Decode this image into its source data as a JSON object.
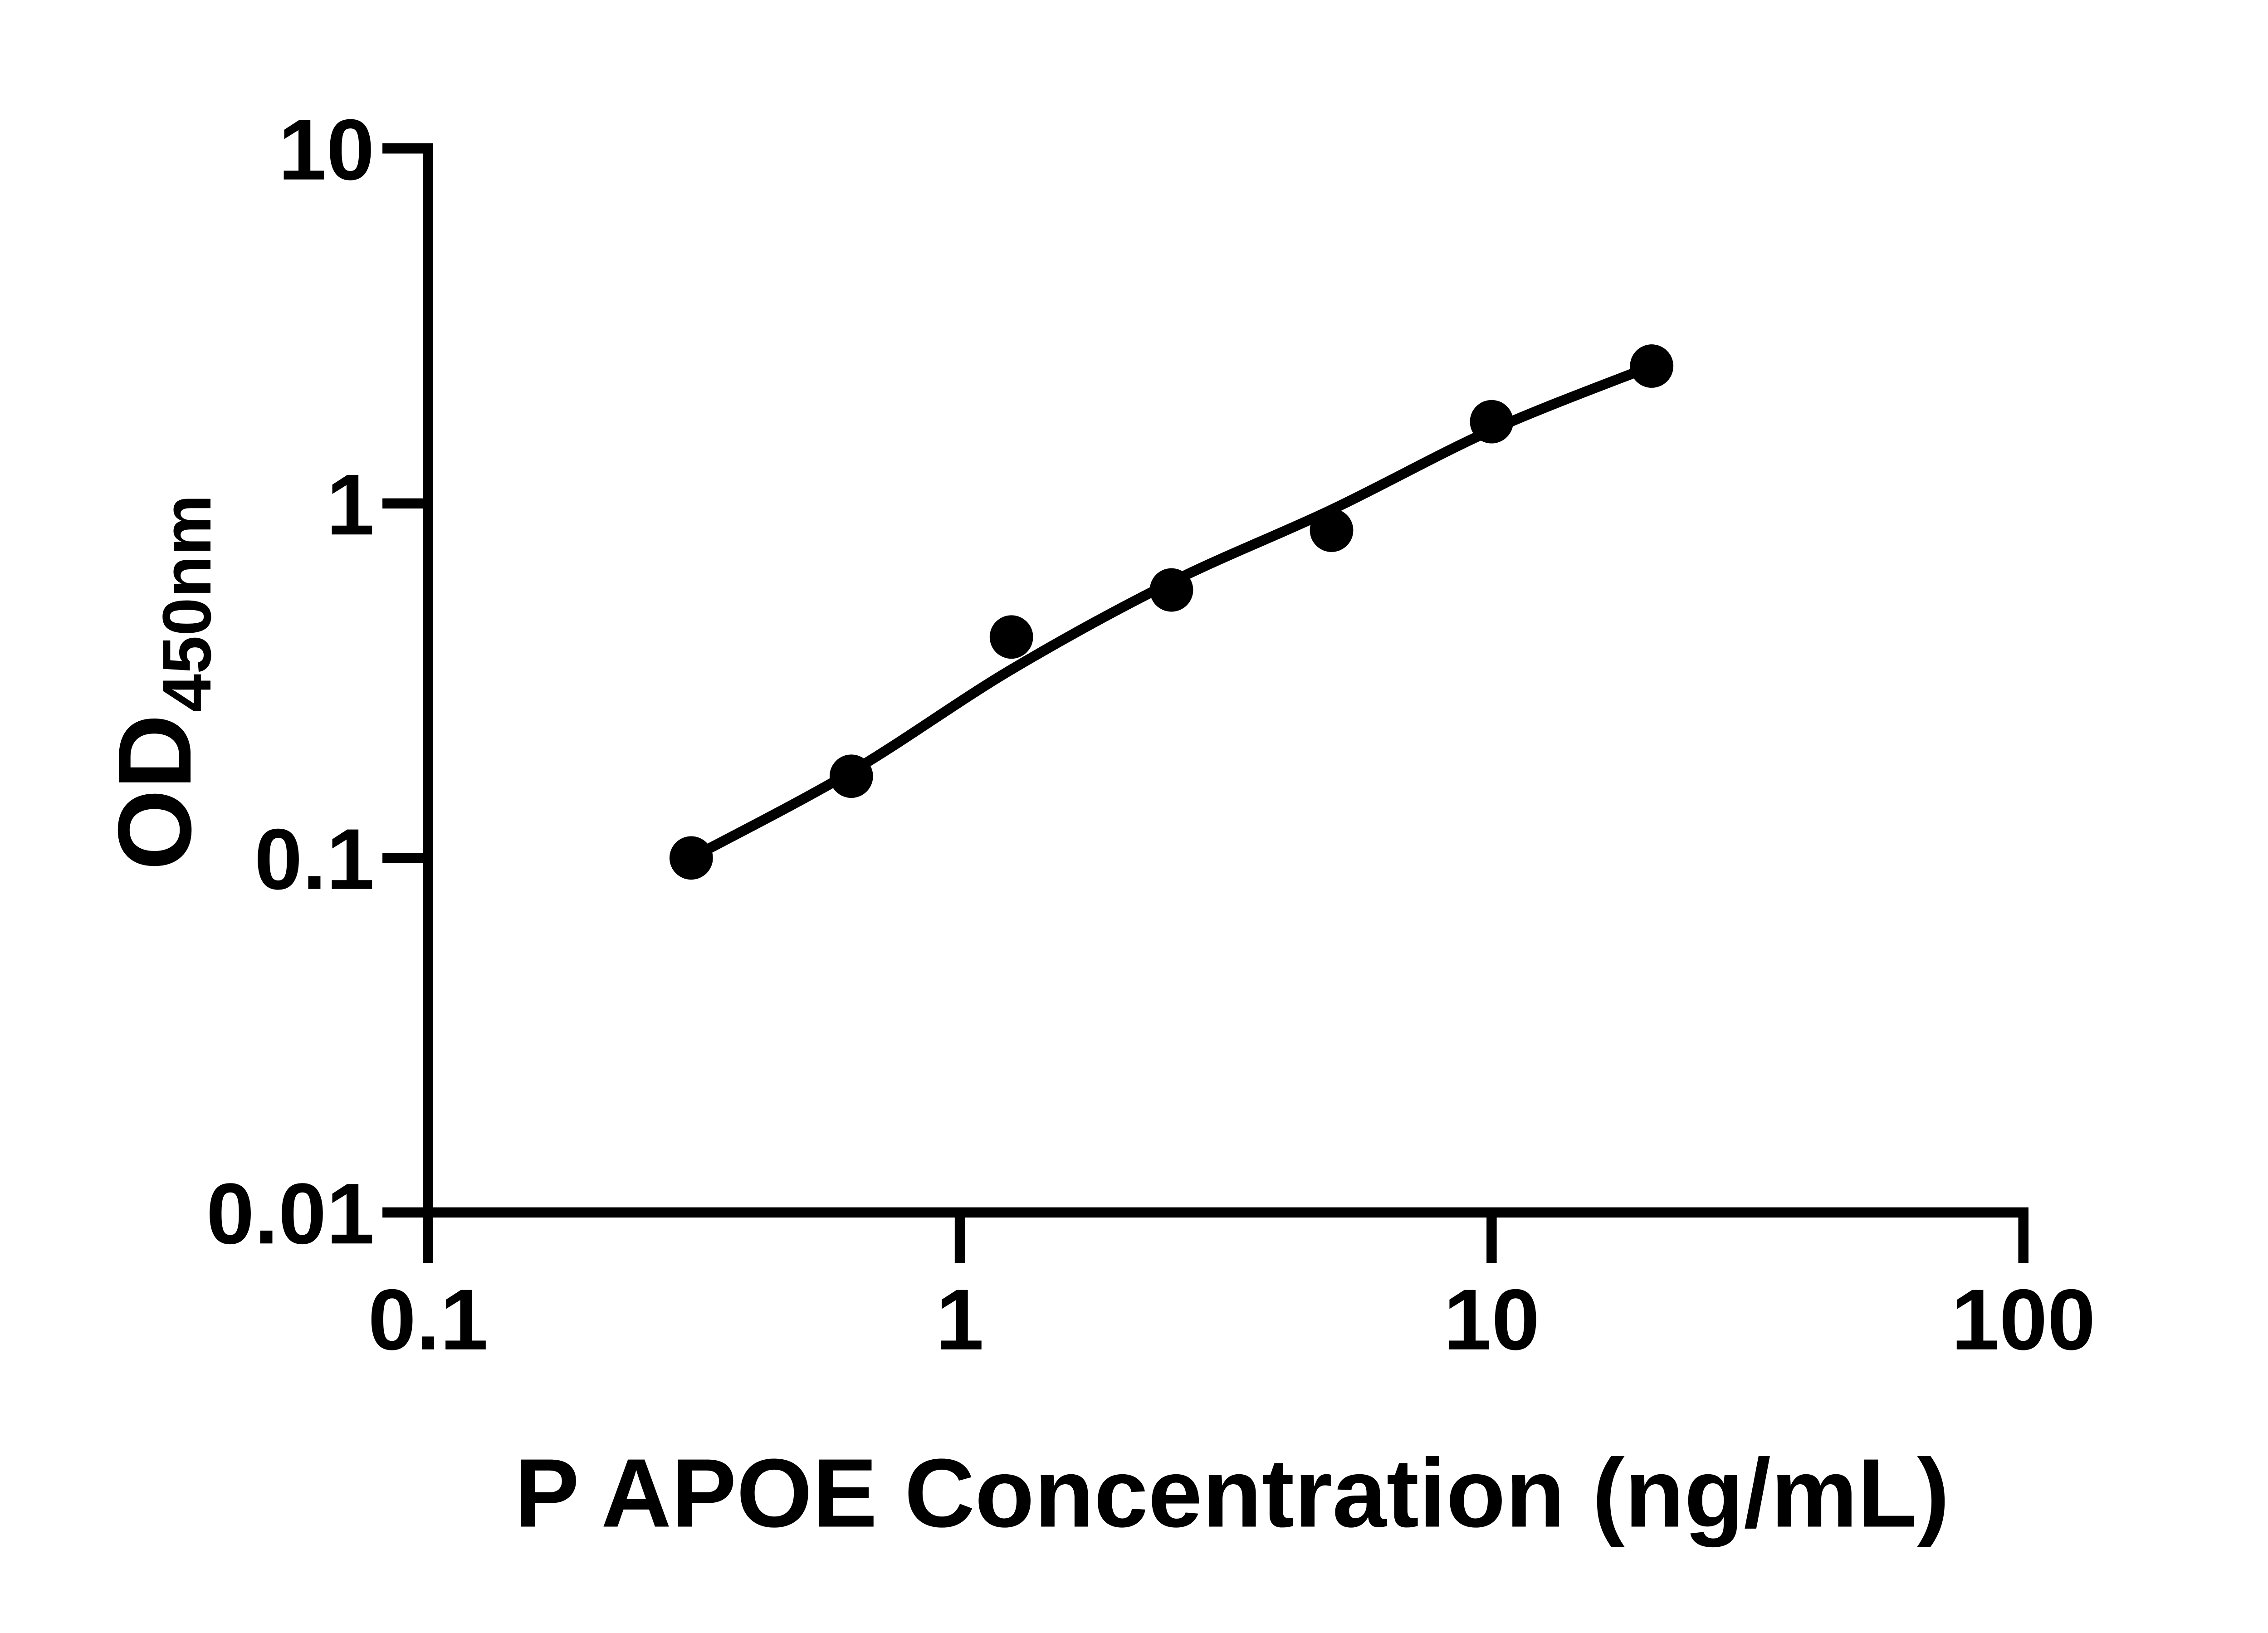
{
  "chart_data": {
    "type": "scatter",
    "title": "",
    "xlabel": "P APOE Concentration (ng/mL)",
    "ylabel_main": "OD",
    "ylabel_sub": "450nm",
    "x_scale": "log",
    "y_scale": "log",
    "xlim": [
      0.1,
      100
    ],
    "ylim": [
      0.01,
      10
    ],
    "x_ticks": [
      0.1,
      1,
      10,
      100
    ],
    "x_tick_labels": [
      "0.1",
      "1",
      "10",
      "100"
    ],
    "y_ticks": [
      0.01,
      0.1,
      1,
      10
    ],
    "y_tick_labels": [
      "0.01",
      "0.1",
      "1",
      "10"
    ],
    "grid": "off",
    "legend": "none",
    "marker_color": "#000000",
    "line_color": "#000000",
    "axis_color": "#000000",
    "background": "#ffffff",
    "points": [
      {
        "x": 0.3125,
        "od": 0.1
      },
      {
        "x": 0.625,
        "od": 0.17
      },
      {
        "x": 1.25,
        "od": 0.42
      },
      {
        "x": 2.5,
        "od": 0.57
      },
      {
        "x": 5,
        "od": 0.84
      },
      {
        "x": 10,
        "od": 1.7
      },
      {
        "x": 20,
        "od": 2.44
      }
    ],
    "fit_curve": [
      {
        "x": 0.3125,
        "od": 0.1
      },
      {
        "x": 0.625,
        "od": 0.175
      },
      {
        "x": 1.25,
        "od": 0.34
      },
      {
        "x": 2.5,
        "od": 0.6
      },
      {
        "x": 5,
        "od": 0.96
      },
      {
        "x": 10,
        "od": 1.61
      },
      {
        "x": 20,
        "od": 2.44
      }
    ]
  }
}
